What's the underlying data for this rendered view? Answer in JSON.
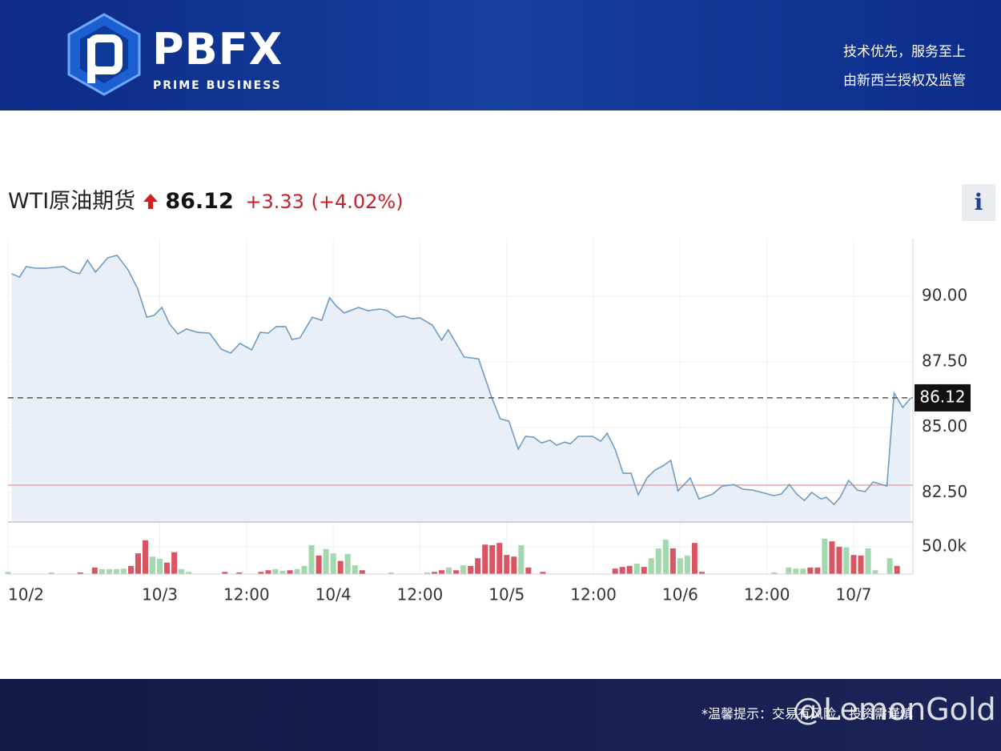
{
  "header": {
    "brand": "PBFX",
    "tagline": "PRIME BUSINESS",
    "slogan_1": "技术优先，服务至上",
    "slogan_2": "由新西兰授权及监管"
  },
  "footer": {
    "notice": "*温馨提示：交易有风险，投资需谨慎",
    "watermark": "@LemonGold"
  },
  "chart_data": {
    "type": "line",
    "title": "WTI原油期货",
    "last": 86.12,
    "change": "+3.33",
    "change_pct": "(+4.02%)",
    "color": "#6f9cc4",
    "area_color": "#e9eff6",
    "prev_close": 82.79,
    "prev_close_color": "#eba3ab",
    "grid": true,
    "xlim": [
      3,
      128.2
    ],
    "xticks": [
      {
        "value": 3,
        "label": "10/2"
      },
      {
        "value": 24,
        "label": "10/3"
      },
      {
        "value": 36,
        "label": "12:00"
      },
      {
        "value": 48,
        "label": "10/4"
      },
      {
        "value": 60,
        "label": "12:00"
      },
      {
        "value": 72,
        "label": "10/5"
      },
      {
        "value": 84,
        "label": "12:00"
      },
      {
        "value": 96,
        "label": "10/6"
      },
      {
        "value": 108,
        "label": "12:00"
      },
      {
        "value": 120,
        "label": "10/7"
      }
    ],
    "ylim": [
      81.38,
      92.2
    ],
    "yticks": [
      {
        "value": 82.5,
        "label": "82.50"
      },
      {
        "value": 85,
        "label": "85.00"
      },
      {
        "value": 87.5,
        "label": "87.50"
      },
      {
        "value": 90,
        "label": "90.00"
      }
    ],
    "x": [
      3.5,
      4.6,
      5.5,
      6.8,
      8.3,
      10.7,
      12.0,
      12.9,
      14.0,
      15.1,
      16.8,
      18.1,
      19.6,
      20.9,
      22.2,
      23.2,
      24.3,
      25.3,
      26.5,
      27.7,
      29.2,
      30.9,
      32.5,
      33.8,
      35.1,
      36.7,
      37.9,
      39.0,
      40.1,
      41.4,
      42.3,
      43.4,
      45.1,
      46.4,
      47.5,
      48.4,
      49.5,
      51.5,
      52.8,
      54.5,
      55.5,
      56.7,
      57.8,
      58.9,
      60.0,
      61.7,
      63.0,
      63.9,
      66.1,
      68.1,
      69.9,
      71.1,
      72.3,
      73.6,
      74.6,
      75.7,
      76.8,
      78.0,
      78.9,
      80.0,
      80.8,
      81.9,
      83.9,
      85.0,
      85.9,
      87.0,
      88.1,
      89.2,
      90.2,
      91.4,
      92.5,
      93.6,
      94.7,
      95.7,
      97.4,
      98.6,
      100.5,
      101.8,
      103.4,
      104.7,
      106.0,
      107.7,
      108.9,
      110.0,
      111.1,
      112.1,
      113.2,
      114.2,
      115.5,
      116.2,
      117.3,
      118.2,
      119.3,
      120.5,
      121.6,
      122.7,
      124.6,
      125.6,
      126.8,
      127.9
    ],
    "values": [
      90.86,
      90.73,
      91.13,
      91.07,
      91.07,
      91.13,
      90.92,
      90.86,
      91.38,
      90.92,
      91.47,
      91.56,
      91.01,
      90.31,
      89.2,
      89.27,
      89.57,
      88.96,
      88.56,
      88.75,
      88.62,
      88.59,
      87.98,
      87.83,
      88.2,
      87.95,
      88.62,
      88.59,
      88.84,
      88.84,
      88.35,
      88.41,
      89.2,
      89.08,
      89.94,
      89.63,
      89.36,
      89.57,
      89.45,
      89.51,
      89.45,
      89.2,
      89.24,
      89.14,
      89.17,
      88.9,
      88.32,
      88.72,
      87.68,
      87.61,
      86.15,
      85.32,
      85.23,
      84.16,
      84.65,
      84.62,
      84.4,
      84.5,
      84.31,
      84.43,
      84.37,
      84.65,
      84.65,
      84.46,
      84.77,
      84.16,
      83.24,
      83.24,
      82.42,
      83.06,
      83.36,
      83.52,
      83.73,
      82.57,
      83.06,
      82.26,
      82.45,
      82.75,
      82.81,
      82.63,
      82.6,
      82.48,
      82.39,
      82.45,
      82.81,
      82.45,
      82.2,
      82.51,
      82.26,
      82.32,
      82.05,
      82.35,
      82.97,
      82.6,
      82.54,
      82.91,
      82.75,
      86.3,
      85.75,
      86.12
    ],
    "volume": {
      "type": "bar",
      "up_color": "#a3d7ad",
      "down_color": "#d95562",
      "ylim": [
        0,
        91000
      ],
      "yticks": [
        {
          "value": 50000,
          "label": "50.0k"
        }
      ],
      "x": [
        3,
        9,
        13,
        15,
        16,
        17,
        18,
        19,
        20,
        21,
        22,
        23,
        24,
        25,
        26,
        27,
        28,
        33,
        35,
        38,
        39,
        40,
        41,
        42,
        43,
        44,
        45,
        46,
        47,
        48,
        49,
        50,
        51,
        52,
        56,
        61,
        62,
        63,
        64,
        65,
        66,
        67,
        68,
        69,
        70,
        71,
        72,
        73,
        74,
        75,
        77,
        87,
        88,
        89,
        90,
        91,
        92,
        93,
        94,
        95,
        96,
        97,
        98,
        99,
        109,
        111,
        112,
        113,
        114,
        115,
        116,
        117,
        118,
        119,
        120,
        121,
        122,
        123,
        125,
        126
      ],
      "values": [
        4000,
        3000,
        3000,
        12000,
        9000,
        9000,
        9000,
        10000,
        15000,
        38000,
        62000,
        32000,
        28000,
        21000,
        40000,
        9000,
        4000,
        4000,
        3000,
        4000,
        7000,
        9000,
        6000,
        7000,
        9000,
        15000,
        53000,
        34000,
        46000,
        38000,
        24000,
        37000,
        16000,
        7000,
        3000,
        3000,
        4000,
        7000,
        12000,
        7000,
        16000,
        15000,
        29000,
        54000,
        53000,
        57000,
        35000,
        32000,
        53000,
        12000,
        4000,
        10000,
        13000,
        15000,
        19000,
        13000,
        29000,
        47000,
        63000,
        47000,
        29000,
        34000,
        57000,
        4000,
        3000,
        12000,
        10000,
        10000,
        12000,
        12000,
        65000,
        60000,
        50000,
        49000,
        35000,
        34000,
        47000,
        7000,
        29000,
        15000
      ],
      "direction": [
        "up",
        "up",
        "down",
        "down",
        "up",
        "up",
        "up",
        "up",
        "down",
        "down",
        "down",
        "up",
        "up",
        "down",
        "down",
        "up",
        "up",
        "down",
        "down",
        "down",
        "down",
        "up",
        "up",
        "down",
        "up",
        "up",
        "up",
        "down",
        "up",
        "up",
        "down",
        "up",
        "up",
        "down",
        "up",
        "up",
        "down",
        "down",
        "up",
        "down",
        "up",
        "down",
        "down",
        "down",
        "down",
        "down",
        "down",
        "down",
        "up",
        "down",
        "down",
        "down",
        "down",
        "down",
        "up",
        "down",
        "up",
        "up",
        "up",
        "down",
        "up",
        "up",
        "down",
        "down",
        "up",
        "up",
        "up",
        "up",
        "down",
        "down",
        "up",
        "down",
        "down",
        "up",
        "down",
        "down",
        "up",
        "up",
        "up",
        "down"
      ]
    }
  }
}
